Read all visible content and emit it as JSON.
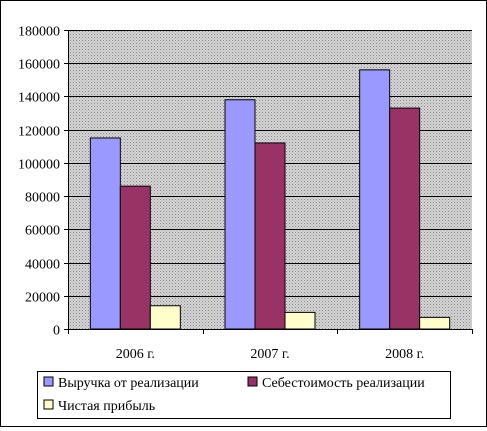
{
  "chart_data": {
    "type": "bar",
    "categories": [
      "2006 г.",
      "2007 г.",
      "2008 г."
    ],
    "series": [
      {
        "name": "Выручка от реализации",
        "values": [
          115000,
          138000,
          156000
        ],
        "color": "#9999ff"
      },
      {
        "name": "Себестоимость реализации",
        "values": [
          86000,
          112000,
          133000
        ],
        "color": "#993366"
      },
      {
        "name": "Чистая прибыль",
        "values": [
          14000,
          10000,
          7000
        ],
        "color": "#ffffcc"
      }
    ],
    "yticks": [
      0,
      20000,
      40000,
      60000,
      80000,
      100000,
      120000,
      140000,
      160000,
      180000
    ],
    "ylim": [
      0,
      180000
    ],
    "grid": true,
    "legend_position": "bottom",
    "plot_background": "#c0c0c0"
  }
}
